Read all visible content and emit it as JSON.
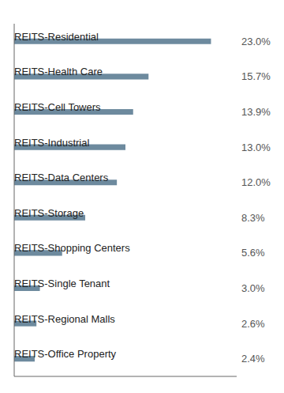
{
  "chart_data": {
    "type": "bar",
    "orientation": "horizontal",
    "categories": [
      "REITS-Office Property",
      "REITS-Regional Malls",
      "REITS-Single Tenant",
      "REITS-Shopping Centers",
      "REITS-Storage",
      "REITS-Data Centers",
      "REITS-Industrial",
      "REITS-Cell Towers",
      "REITS-Health Care",
      "REITS-Residential"
    ],
    "values": [
      2.4,
      2.6,
      3.0,
      5.6,
      8.3,
      12.0,
      13.0,
      13.9,
      15.7,
      23.0
    ],
    "value_labels": [
      "2.4%",
      "2.6%",
      "3.0%",
      "5.6%",
      "8.3%",
      "12.0%",
      "13.0%",
      "13.9%",
      "15.7%",
      "23.0%"
    ],
    "color": "#6d8a9e",
    "xlim": [
      0,
      26
    ],
    "tick_labels": false,
    "data_labels": true,
    "grid": false
  }
}
